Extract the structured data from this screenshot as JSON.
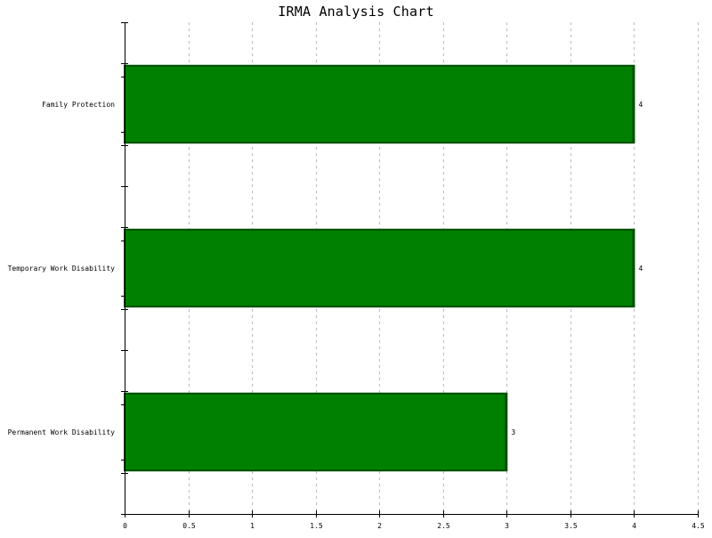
{
  "chart_data": {
    "type": "bar",
    "orientation": "horizontal",
    "title": "IRMA Analysis Chart",
    "xlabel": "",
    "ylabel": "",
    "categories": [
      "Family Protection",
      "Temporary Work Disability",
      "Permanent Work Disability"
    ],
    "values": [
      4,
      4,
      3
    ],
    "data_labels": [
      "4",
      "4",
      "3"
    ],
    "xlim": [
      0,
      4.5
    ],
    "x_ticks": [
      0,
      0.5,
      1,
      1.5,
      2,
      2.5,
      3,
      3.5,
      4,
      4.5
    ],
    "x_tick_labels": [
      "0",
      "0.5",
      "1",
      "1.5",
      "2",
      "2.5",
      "3",
      "3.5",
      "4",
      "4.5"
    ],
    "grid": "vertical dotted",
    "legend": "none"
  },
  "colors": {
    "bar_fill": "#008000",
    "bar_edge": "#004d00",
    "grid": "#bbbbbb",
    "axis": "#000000",
    "text": "#000000"
  }
}
